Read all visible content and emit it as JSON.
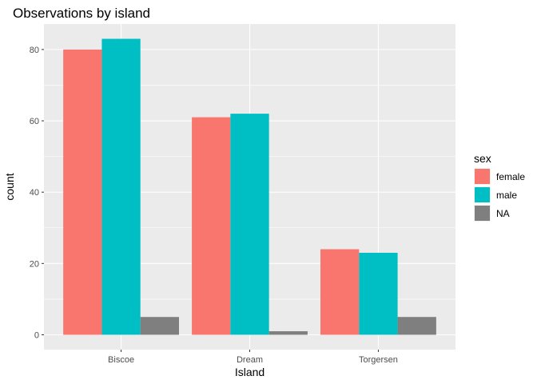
{
  "chart_data": {
    "type": "bar",
    "title": "Observations by island",
    "xlabel": "Island",
    "ylabel": "count",
    "categories": [
      "Biscoe",
      "Dream",
      "Torgersen"
    ],
    "series": [
      {
        "name": "female",
        "values": [
          80,
          61,
          24
        ],
        "color": "#F8766D"
      },
      {
        "name": "male",
        "values": [
          83,
          62,
          23
        ],
        "color": "#00BFC4"
      },
      {
        "name": "NA",
        "values": [
          5,
          1,
          5
        ],
        "color": "#7F7F7F"
      }
    ],
    "ylim": [
      -4.15,
      87.15
    ],
    "yticks": [
      0,
      20,
      40,
      60,
      80
    ],
    "legend_title": "sex",
    "legend_position": "right",
    "grid": true,
    "panel_background": "#EBEBEB"
  }
}
